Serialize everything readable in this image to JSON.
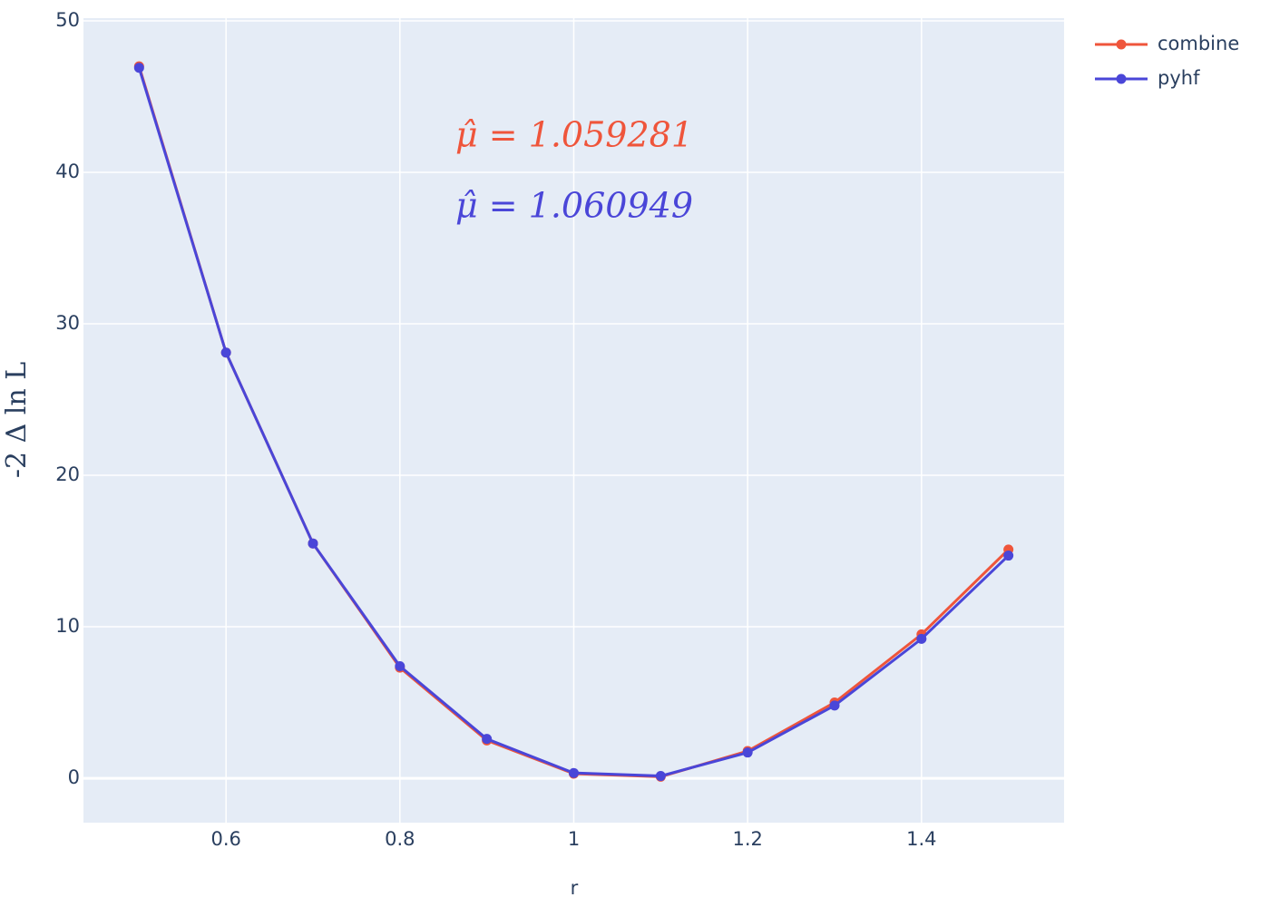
{
  "chart_data": {
    "type": "line",
    "x_label": "r",
    "y_label": "-2 Δ ln L",
    "x": [
      0.5,
      0.6,
      0.7,
      0.8,
      0.9,
      1.0,
      1.1,
      1.2,
      1.3,
      1.4,
      1.5
    ],
    "series": [
      {
        "name": "combine",
        "color": "#ef553b",
        "values": [
          47.0,
          28.1,
          15.5,
          7.3,
          2.5,
          0.3,
          0.1,
          1.8,
          5.0,
          9.5,
          15.1
        ]
      },
      {
        "name": "pyhf",
        "color": "#4a46d8",
        "values": [
          46.9,
          28.1,
          15.5,
          7.4,
          2.6,
          0.35,
          0.15,
          1.7,
          4.8,
          9.2,
          14.7
        ]
      }
    ],
    "annotations": [
      {
        "text": "μ̂ = 1.059281",
        "color": "#ef553b"
      },
      {
        "text": "μ̂ = 1.060949",
        "color": "#4a46d8"
      }
    ],
    "xlim": [
      0.436,
      1.564
    ],
    "ylim": [
      -2.93,
      50.18
    ],
    "xticks": [
      0.6,
      0.8,
      1,
      1.2,
      1.4
    ],
    "yticks": [
      0,
      10,
      20,
      30,
      40,
      50
    ],
    "grid": true,
    "legend": "top-right"
  }
}
